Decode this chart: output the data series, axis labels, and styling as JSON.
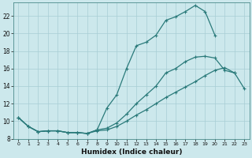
{
  "xlabel": "Humidex (Indice chaleur)",
  "bg_color": "#cce8ec",
  "grid_color": "#a8cdd4",
  "line_color": "#2a7a7a",
  "xlim": [
    -0.5,
    23.5
  ],
  "ylim": [
    8,
    23.5
  ],
  "xticks": [
    0,
    1,
    2,
    3,
    4,
    5,
    6,
    7,
    8,
    9,
    10,
    11,
    12,
    13,
    14,
    15,
    16,
    17,
    18,
    19,
    20,
    21,
    22,
    23
  ],
  "yticks": [
    8,
    10,
    12,
    14,
    16,
    18,
    20,
    22
  ],
  "s1_x": [
    0,
    1,
    2,
    3,
    4,
    5,
    6,
    7,
    8,
    9,
    10,
    11,
    12,
    13,
    14,
    15,
    16,
    17,
    18,
    19,
    20
  ],
  "s1_y": [
    10.4,
    9.4,
    8.8,
    8.9,
    8.9,
    8.7,
    8.7,
    8.6,
    9.0,
    11.5,
    13.0,
    16.0,
    18.6,
    19.0,
    19.8,
    21.5,
    21.9,
    22.5,
    23.2,
    22.5,
    19.8
  ],
  "s2_x": [
    0,
    1,
    2,
    3,
    4,
    5,
    6,
    7,
    8,
    9,
    10,
    11,
    12,
    13,
    14,
    15,
    16,
    17,
    18,
    19,
    20,
    21,
    22
  ],
  "s2_y": [
    10.4,
    9.4,
    8.8,
    8.9,
    8.9,
    8.7,
    8.7,
    8.6,
    9.0,
    9.2,
    9.8,
    10.8,
    12.0,
    13.0,
    14.0,
    15.5,
    16.0,
    16.8,
    17.3,
    17.4,
    17.2,
    15.8,
    15.5
  ],
  "s3_x": [
    0,
    1,
    2,
    3,
    4,
    5,
    6,
    7,
    8,
    9,
    10,
    11,
    12,
    13,
    14,
    15,
    16,
    17,
    18,
    19,
    20,
    21,
    22,
    23
  ],
  "s3_y": [
    10.4,
    9.4,
    8.8,
    8.9,
    8.9,
    8.7,
    8.7,
    8.6,
    8.9,
    9.0,
    9.4,
    10.0,
    10.7,
    11.3,
    12.0,
    12.7,
    13.3,
    13.9,
    14.5,
    15.2,
    15.8,
    16.1,
    15.5,
    13.7
  ]
}
